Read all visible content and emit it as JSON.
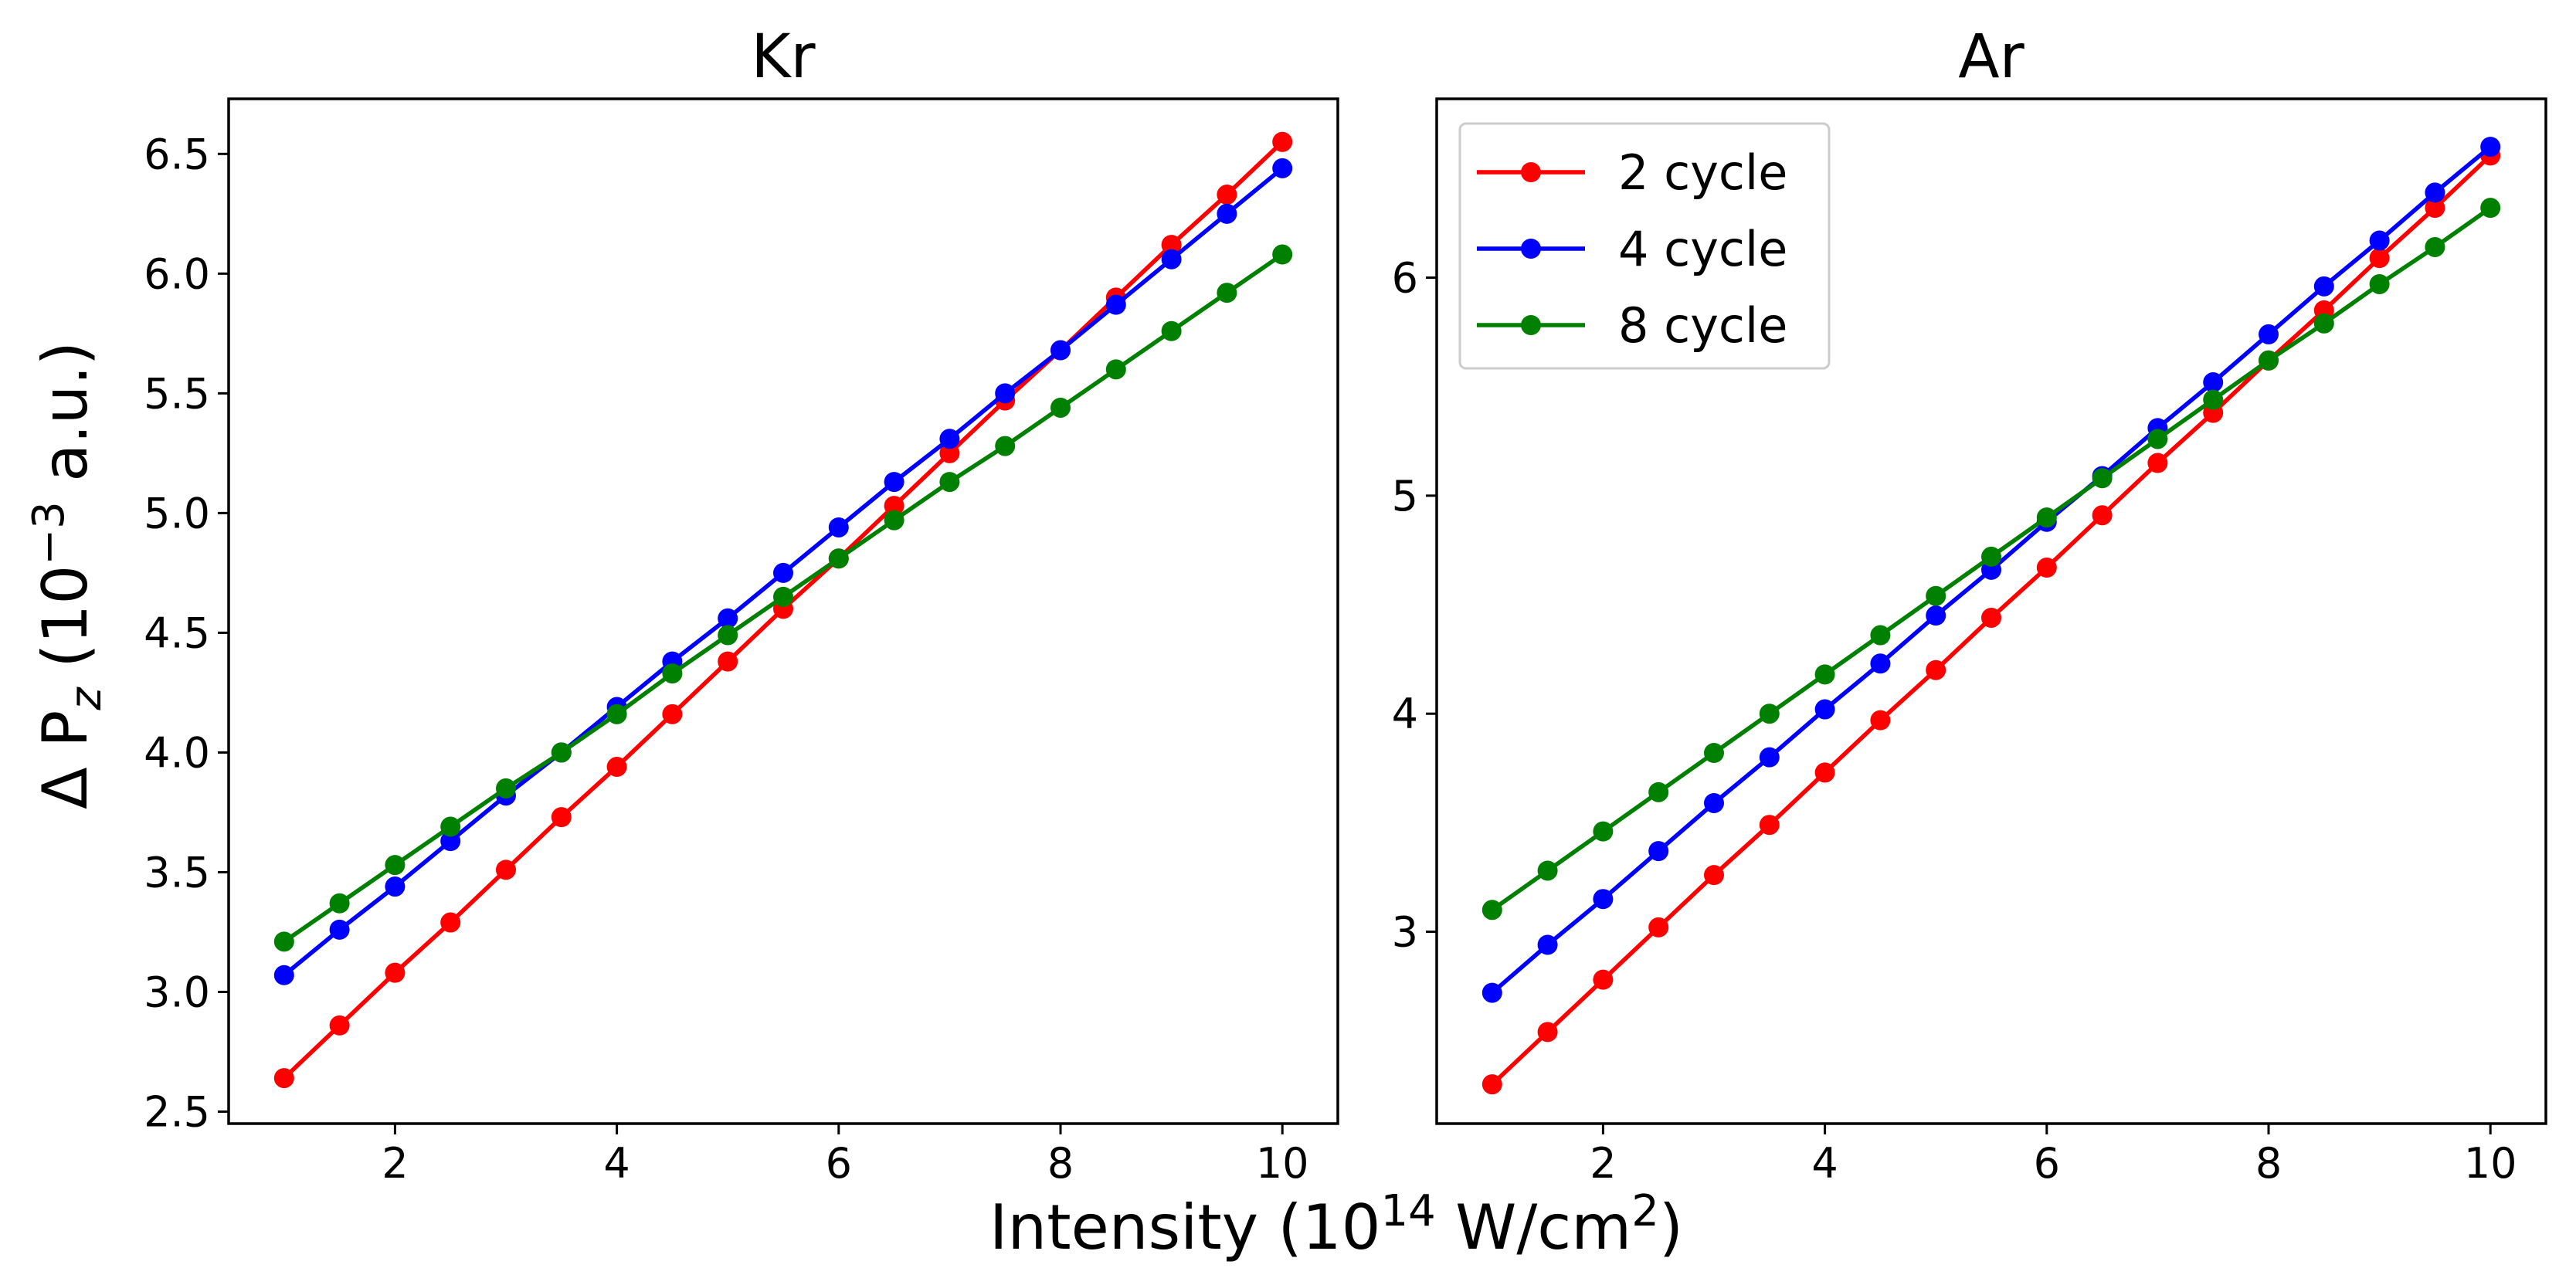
{
  "chart_data": [
    {
      "type": "line",
      "title": "Kr",
      "ylabel": "Δ P_z (10^-3 a.u.)",
      "xlabel": "Intensity (10^14 W/cm^2)",
      "xlim": [
        0.5,
        10.5
      ],
      "ylim": [
        2.45,
        6.73
      ],
      "xticks": [
        2,
        4,
        6,
        8,
        10
      ],
      "yticks": [
        2.5,
        3.0,
        3.5,
        4.0,
        4.5,
        5.0,
        5.5,
        6.0,
        6.5
      ],
      "x": [
        1,
        1.5,
        2,
        2.5,
        3,
        3.5,
        4,
        4.5,
        5,
        5.5,
        6,
        6.5,
        7,
        7.5,
        8,
        8.5,
        9,
        9.5,
        10
      ],
      "series": [
        {
          "name": "2 cycle",
          "color": "#ff0000",
          "values": [
            2.64,
            2.86,
            3.08,
            3.29,
            3.51,
            3.73,
            3.94,
            4.16,
            4.38,
            4.6,
            4.81,
            5.03,
            5.25,
            5.47,
            5.68,
            5.9,
            6.12,
            6.33,
            6.55
          ]
        },
        {
          "name": "4 cycle",
          "color": "#0000ff",
          "values": [
            3.07,
            3.26,
            3.44,
            3.63,
            3.82,
            4.0,
            4.19,
            4.38,
            4.56,
            4.75,
            4.94,
            5.13,
            5.31,
            5.5,
            5.68,
            5.87,
            6.06,
            6.25,
            6.44
          ]
        },
        {
          "name": "8 cycle",
          "color": "#008000",
          "values": [
            3.21,
            3.37,
            3.53,
            3.69,
            3.85,
            4.0,
            4.16,
            4.33,
            4.49,
            4.65,
            4.81,
            4.97,
            5.13,
            5.28,
            5.44,
            5.6,
            5.76,
            5.92,
            6.08
          ]
        }
      ]
    },
    {
      "type": "line",
      "title": "Ar",
      "xlabel": "Intensity (10^14 W/cm^2)",
      "xlim": [
        0.5,
        10.5
      ],
      "ylim": [
        2.12,
        6.82
      ],
      "xticks": [
        2,
        4,
        6,
        8,
        10
      ],
      "yticks": [
        3,
        4,
        5,
        6
      ],
      "legend": "upper left",
      "x": [
        1,
        1.5,
        2,
        2.5,
        3,
        3.5,
        4,
        4.5,
        5,
        5.5,
        6,
        6.5,
        7,
        7.5,
        8,
        8.5,
        9,
        9.5,
        10
      ],
      "series": [
        {
          "name": "2 cycle",
          "color": "#ff0000",
          "values": [
            2.3,
            2.54,
            2.78,
            3.02,
            3.26,
            3.49,
            3.73,
            3.97,
            4.2,
            4.44,
            4.67,
            4.91,
            5.15,
            5.38,
            5.62,
            5.85,
            6.09,
            6.32,
            6.56
          ]
        },
        {
          "name": "4 cycle",
          "color": "#0000ff",
          "values": [
            2.72,
            2.94,
            3.15,
            3.37,
            3.59,
            3.8,
            4.02,
            4.23,
            4.45,
            4.66,
            4.88,
            5.09,
            5.31,
            5.52,
            5.74,
            5.96,
            6.17,
            6.39,
            6.6
          ]
        },
        {
          "name": "8 cycle",
          "color": "#008000",
          "values": [
            3.1,
            3.28,
            3.46,
            3.64,
            3.82,
            4.0,
            4.18,
            4.36,
            4.54,
            4.72,
            4.9,
            5.08,
            5.26,
            5.44,
            5.62,
            5.79,
            5.97,
            6.14,
            6.32
          ]
        }
      ]
    }
  ],
  "shared": {
    "ylabel_main": "Δ P",
    "ylabel_sub": "z",
    "ylabel_pre": "(10",
    "ylabel_exp": "−3",
    "ylabel_post": " a.u.)",
    "xlabel_pre": "Intensity (10",
    "xlabel_exp": "14",
    "xlabel_mid": " W/cm",
    "xlabel_exp2": "2",
    "xlabel_post": ")"
  }
}
